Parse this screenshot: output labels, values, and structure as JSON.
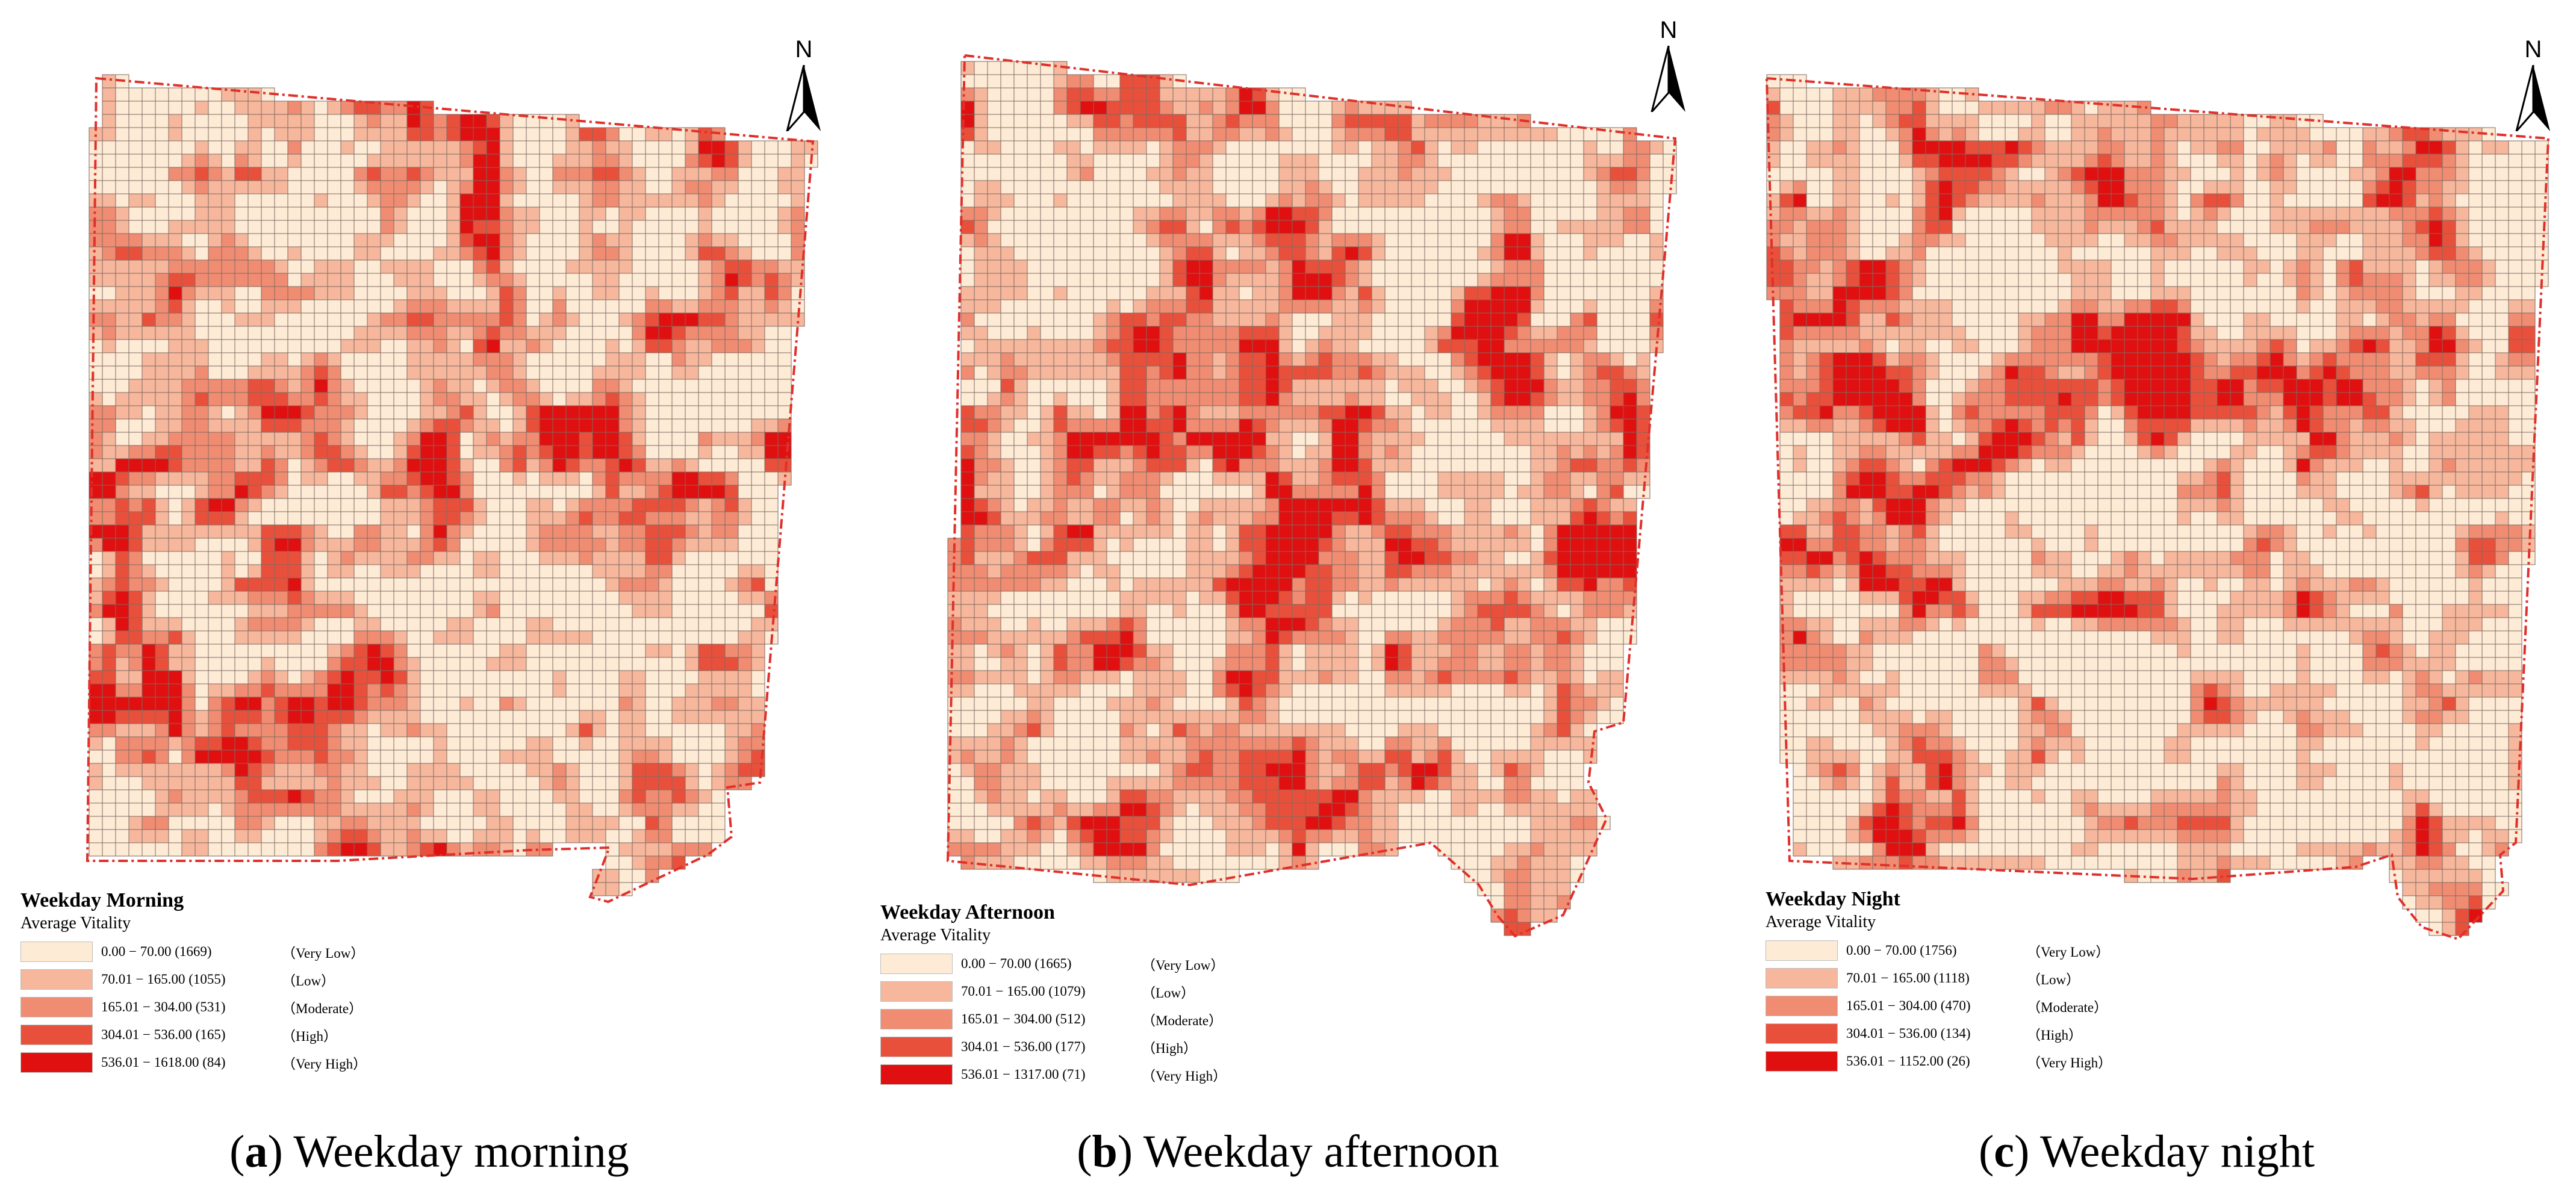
{
  "colors": {
    "very_low": "#fdebd6",
    "low": "#f6b79c",
    "moderate": "#f08c72",
    "high": "#e9503b",
    "very_high": "#e01010",
    "grid_line": "#7f6a60",
    "boundary": "#e0302a"
  },
  "north_arrow": {
    "label": "N",
    "icon": "north-arrow-icon"
  },
  "panels": [
    {
      "id": "a",
      "legend_title": "Weekday Morning",
      "legend_subtitle": "Average Vitality",
      "legend": [
        {
          "range": "0.00 − 70.00 (1669)",
          "class": "（Very Low）"
        },
        {
          "range": "70.01 − 165.00 (1055)",
          "class": "（Low）"
        },
        {
          "range": "165.01 − 304.00 (531)",
          "class": "（Moderate）"
        },
        {
          "range": "304.01 − 536.00 (165)",
          "class": "（High）"
        },
        {
          "range": "536.01 − 1618.00 (84)",
          "class": "（Very High）"
        }
      ],
      "caption_letter": "a",
      "caption_text": " Weekday morning"
    },
    {
      "id": "b",
      "legend_title": "Weekday Afternoon",
      "legend_subtitle": "Average Vitality",
      "legend": [
        {
          "range": "0.00 − 70.00 (1665)",
          "class": "（Very Low）"
        },
        {
          "range": "70.01 − 165.00 (1079)",
          "class": "（Low）"
        },
        {
          "range": "165.01 − 304.00 (512)",
          "class": "（Moderate）"
        },
        {
          "range": "304.01 − 536.00 (177)",
          "class": "（High）"
        },
        {
          "range": "536.01 − 1317.00 (71)",
          "class": "（Very High）"
        }
      ],
      "caption_letter": "b",
      "caption_text": " Weekday afternoon"
    },
    {
      "id": "c",
      "legend_title": "Weekday Night",
      "legend_subtitle": "Average Vitality",
      "legend": [
        {
          "range": "0.00 − 70.00 (1756)",
          "class": "（Very Low）"
        },
        {
          "range": "70.01 − 165.00 (1118)",
          "class": "（Low）"
        },
        {
          "range": "165.01 − 304.00 (470)",
          "class": "（Moderate）"
        },
        {
          "range": "304.01 − 536.00 (134)",
          "class": "（High）"
        },
        {
          "range": "536.01 − 1152.00 (26)",
          "class": "（Very High）"
        }
      ],
      "caption_letter": "c",
      "caption_text": " Weekday night"
    }
  ]
}
